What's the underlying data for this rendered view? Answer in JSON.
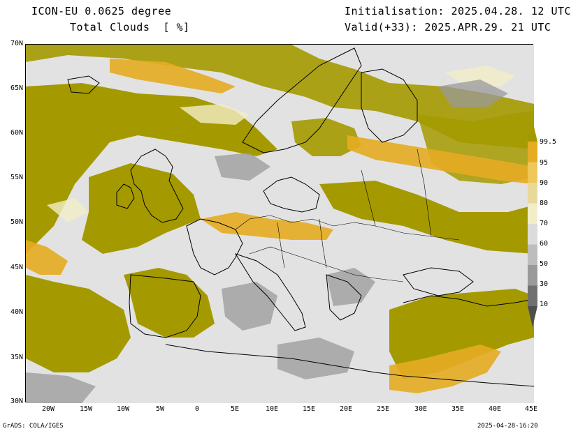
{
  "header": {
    "title_line1": "ICON-EU 0.0625 degree",
    "title_line2": "Total Clouds  [ %]",
    "initialisation": "Initialisation: 2025.04.28. 12 UTC",
    "valid": "Valid(+33): 2025.APR.29. 21 UTC"
  },
  "axes": {
    "y_labels": [
      "70N",
      "65N",
      "60N",
      "55N",
      "50N",
      "45N",
      "40N",
      "35N",
      "30N"
    ],
    "x_labels": [
      "20W",
      "15W",
      "10W",
      "5W",
      "0",
      "5E",
      "10E",
      "15E",
      "20E",
      "25E",
      "30E",
      "35E",
      "40E",
      "45E"
    ]
  },
  "colorbar": {
    "labels": [
      "99.5",
      "95",
      "90",
      "80",
      "70",
      "60",
      "50",
      "30",
      "10"
    ],
    "colors": [
      "#a49a00",
      "#e6ac22",
      "#f0c75a",
      "#e8d89a",
      "#f2eec8",
      "#dcdcdc",
      "#bdbdbd",
      "#9a9a9a",
      "#707070",
      "#4e4e4e"
    ]
  },
  "map": {
    "land_outline_color": "#000000",
    "background_clear": "#e2e2e2",
    "cloud_colors": {
      "overcast": "#a49a00",
      "heavy": "#e6ac22",
      "medium": "#f0c75a",
      "light": "#bdbdbd",
      "thin": "#8c8c8c"
    }
  },
  "footer": {
    "left": "GrADS: COLA/IGES",
    "right": "2025-04-28-16:20"
  }
}
